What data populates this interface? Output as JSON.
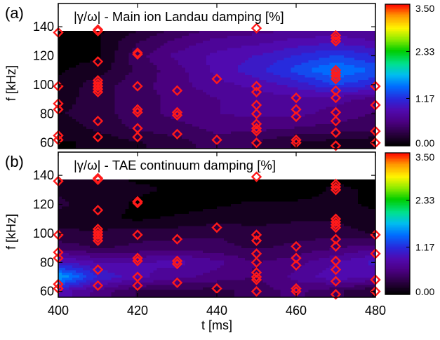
{
  "colors": {
    "marker": "#ff1a1a",
    "background": "#000000",
    "text": "#000000"
  },
  "chart_data": [
    {
      "type": "heatmap",
      "panel_label": "(a)",
      "title": "|γ/ω| - Main ion Landau damping [%]",
      "xlabel": "",
      "ylabel": "f [kHz]",
      "xlim": [
        400,
        480
      ],
      "ylim": [
        56,
        156
      ],
      "xticks": [
        "400",
        "420",
        "440",
        "460",
        "480"
      ],
      "yticks": [
        "60",
        "80",
        "100",
        "120",
        "140"
      ],
      "colorbar": {
        "range": [
          0.0,
          3.5
        ],
        "ticks": [
          "0.00",
          "1.17",
          "2.33",
          "3.50"
        ]
      },
      "field": {
        "t": [
          400,
          410,
          420,
          430,
          440,
          450,
          460,
          470,
          480
        ],
        "f": [
          60,
          70,
          80,
          90,
          100,
          110,
          120,
          130,
          138
        ],
        "values": [
          [
            0.05,
            0.1,
            0.2,
            0.3,
            0.45,
            0.35,
            0.2,
            0.15,
            0.1
          ],
          [
            0.15,
            0.25,
            0.4,
            0.45,
            0.55,
            0.55,
            0.5,
            0.45,
            0.4
          ],
          [
            0.2,
            0.3,
            0.45,
            0.55,
            0.65,
            0.7,
            0.7,
            0.6,
            0.5
          ],
          [
            0.15,
            0.3,
            0.45,
            0.55,
            0.65,
            0.7,
            0.75,
            0.7,
            0.6
          ],
          [
            0.1,
            0.3,
            0.45,
            0.6,
            0.75,
            0.85,
            1.0,
            1.25,
            1.1
          ],
          [
            0.05,
            0.15,
            0.4,
            0.6,
            0.85,
            1.05,
            1.3,
            1.55,
            1.35
          ],
          [
            0.0,
            0.05,
            0.45,
            0.7,
            0.85,
            0.95,
            1.1,
            1.25,
            1.1
          ],
          [
            0.0,
            0.05,
            0.35,
            0.55,
            0.7,
            0.75,
            0.85,
            0.9,
            0.8
          ],
          [
            0.0,
            0.05,
            0.2,
            0.4,
            0.55,
            0.6,
            0.65,
            0.7,
            0.65
          ]
        ]
      },
      "markers": [
        [
          400,
          136
        ],
        [
          400,
          99
        ],
        [
          400,
          87
        ],
        [
          400,
          83
        ],
        [
          400,
          65
        ],
        [
          400,
          62
        ],
        [
          410,
          138
        ],
        [
          410,
          137
        ],
        [
          410,
          116
        ],
        [
          410,
          103
        ],
        [
          410,
          101
        ],
        [
          410,
          99
        ],
        [
          410,
          97
        ],
        [
          410,
          95
        ],
        [
          410,
          75
        ],
        [
          410,
          64
        ],
        [
          420,
          122
        ],
        [
          420,
          121
        ],
        [
          420,
          99
        ],
        [
          420,
          83
        ],
        [
          420,
          81
        ],
        [
          420,
          70
        ],
        [
          420,
          64
        ],
        [
          430,
          96
        ],
        [
          430,
          81
        ],
        [
          430,
          79
        ],
        [
          430,
          66
        ],
        [
          440,
          104
        ],
        [
          440,
          62
        ],
        [
          450,
          139
        ],
        [
          450,
          99
        ],
        [
          450,
          95
        ],
        [
          450,
          86
        ],
        [
          450,
          80
        ],
        [
          450,
          73
        ],
        [
          450,
          70
        ],
        [
          450,
          68
        ],
        [
          450,
          60
        ],
        [
          460,
          91
        ],
        [
          460,
          83
        ],
        [
          460,
          78
        ],
        [
          460,
          62
        ],
        [
          460,
          60
        ],
        [
          470,
          134
        ],
        [
          470,
          132
        ],
        [
          470,
          130
        ],
        [
          470,
          110
        ],
        [
          470,
          108
        ],
        [
          470,
          106
        ],
        [
          470,
          104
        ],
        [
          470,
          96
        ],
        [
          470,
          91
        ],
        [
          470,
          81
        ],
        [
          470,
          75
        ],
        [
          470,
          67
        ],
        [
          470,
          58
        ],
        [
          480,
          99
        ],
        [
          480,
          86
        ],
        [
          480,
          68
        ],
        [
          480,
          60
        ]
      ]
    },
    {
      "type": "heatmap",
      "panel_label": "(b)",
      "title": "|γ/ω| - TAE continuum damping [%]",
      "xlabel": "t [ms]",
      "ylabel": "f [kHz]",
      "xlim": [
        400,
        480
      ],
      "ylim": [
        56,
        156
      ],
      "xticks": [
        "400",
        "420",
        "440",
        "460",
        "480"
      ],
      "yticks": [
        "60",
        "80",
        "100",
        "120",
        "140"
      ],
      "colorbar": {
        "range": [
          0.0,
          3.5
        ],
        "ticks": [
          "0.00",
          "1.17",
          "2.33",
          "3.50"
        ]
      },
      "field": {
        "t": [
          400,
          410,
          420,
          430,
          440,
          450,
          460,
          470,
          480
        ],
        "f": [
          60,
          70,
          80,
          90,
          100,
          110,
          120,
          130,
          138
        ],
        "values": [
          [
            0.9,
            0.6,
            0.35,
            0.3,
            0.3,
            0.45,
            0.55,
            0.4,
            0.2
          ],
          [
            1.7,
            1.1,
            0.85,
            0.7,
            0.6,
            0.5,
            0.7,
            0.9,
            0.8
          ],
          [
            1.0,
            0.8,
            0.8,
            0.85,
            0.7,
            0.5,
            0.6,
            0.8,
            1.0
          ],
          [
            0.45,
            0.35,
            0.4,
            0.45,
            0.4,
            0.35,
            0.4,
            0.5,
            0.6
          ],
          [
            0.25,
            0.25,
            0.3,
            0.3,
            0.35,
            0.3,
            0.3,
            0.3,
            0.2
          ],
          [
            0.15,
            0.1,
            0.05,
            0.1,
            0.15,
            0.15,
            0.2,
            0.2,
            0.1
          ],
          [
            0.25,
            0.15,
            0.05,
            0.0,
            0.05,
            0.1,
            0.1,
            0.1,
            0.05
          ],
          [
            0.2,
            0.15,
            0.1,
            0.05,
            0.0,
            0.0,
            0.0,
            0.1,
            0.05
          ],
          [
            0.1,
            0.1,
            0.05,
            0.05,
            0.0,
            0.0,
            0.0,
            0.05,
            0.0
          ]
        ]
      },
      "markers": [
        [
          400,
          136
        ],
        [
          400,
          99
        ],
        [
          400,
          87
        ],
        [
          400,
          83
        ],
        [
          400,
          65
        ],
        [
          400,
          62
        ],
        [
          410,
          138
        ],
        [
          410,
          137
        ],
        [
          410,
          116
        ],
        [
          410,
          103
        ],
        [
          410,
          101
        ],
        [
          410,
          99
        ],
        [
          410,
          97
        ],
        [
          410,
          95
        ],
        [
          410,
          75
        ],
        [
          410,
          64
        ],
        [
          420,
          122
        ],
        [
          420,
          121
        ],
        [
          420,
          99
        ],
        [
          420,
          83
        ],
        [
          420,
          81
        ],
        [
          420,
          70
        ],
        [
          420,
          64
        ],
        [
          430,
          96
        ],
        [
          430,
          81
        ],
        [
          430,
          79
        ],
        [
          430,
          66
        ],
        [
          440,
          104
        ],
        [
          440,
          62
        ],
        [
          450,
          139
        ],
        [
          450,
          99
        ],
        [
          450,
          95
        ],
        [
          450,
          86
        ],
        [
          450,
          80
        ],
        [
          450,
          73
        ],
        [
          450,
          70
        ],
        [
          450,
          68
        ],
        [
          450,
          60
        ],
        [
          460,
          91
        ],
        [
          460,
          83
        ],
        [
          460,
          78
        ],
        [
          460,
          62
        ],
        [
          460,
          60
        ],
        [
          470,
          134
        ],
        [
          470,
          132
        ],
        [
          470,
          130
        ],
        [
          470,
          110
        ],
        [
          470,
          108
        ],
        [
          470,
          106
        ],
        [
          470,
          104
        ],
        [
          470,
          96
        ],
        [
          470,
          91
        ],
        [
          470,
          81
        ],
        [
          470,
          75
        ],
        [
          470,
          67
        ],
        [
          470,
          58
        ],
        [
          480,
          99
        ],
        [
          480,
          86
        ],
        [
          480,
          68
        ],
        [
          480,
          60
        ]
      ]
    }
  ]
}
